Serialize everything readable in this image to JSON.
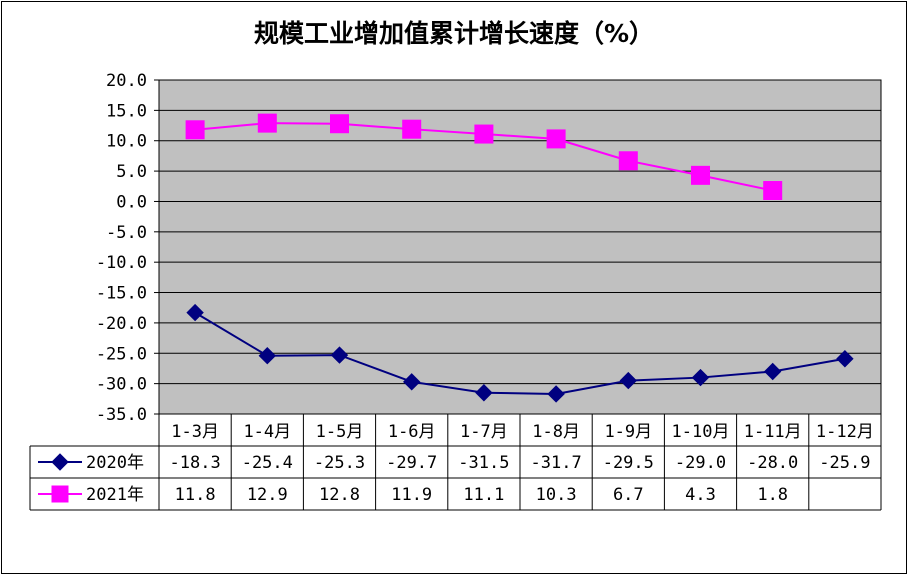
{
  "chart_data": {
    "type": "line",
    "title": "规模工业增加值累计增长速度（%）",
    "categories": [
      "1-3月",
      "1-4月",
      "1-5月",
      "1-6月",
      "1-7月",
      "1-8月",
      "1-9月",
      "1-10月",
      "1-11月",
      "1-12月"
    ],
    "series": [
      {
        "name": "2020年",
        "color": "#000080",
        "marker": "diamond",
        "values": [
          -18.3,
          -25.4,
          -25.3,
          -29.7,
          -31.5,
          -31.7,
          -29.5,
          -29.0,
          -28.0,
          -25.9
        ],
        "labels": [
          "-18.3",
          "-25.4",
          "-25.3",
          "-29.7",
          "-31.5",
          "-31.7",
          "-29.5",
          "-29.0",
          "-28.0",
          "-25.9"
        ]
      },
      {
        "name": "2021年",
        "color": "#FF00FF",
        "marker": "square",
        "values": [
          11.8,
          12.9,
          12.8,
          11.9,
          11.1,
          10.3,
          6.7,
          4.3,
          1.8,
          null
        ],
        "labels": [
          "11.8",
          "12.9",
          "12.8",
          "11.9",
          "11.1",
          "10.3",
          "6.7",
          "4.3",
          "1.8",
          ""
        ]
      }
    ],
    "ylim": [
      -35,
      20
    ],
    "ytick_labels": [
      "20.0",
      "15.0",
      "10.0",
      "5.0",
      "0.0",
      "-5.0",
      "-10.0",
      "-15.0",
      "-20.0",
      "-25.0",
      "-30.0",
      "-35.0"
    ],
    "grid": true,
    "plot_background": "#C0C0C0",
    "legend": "data-table"
  }
}
